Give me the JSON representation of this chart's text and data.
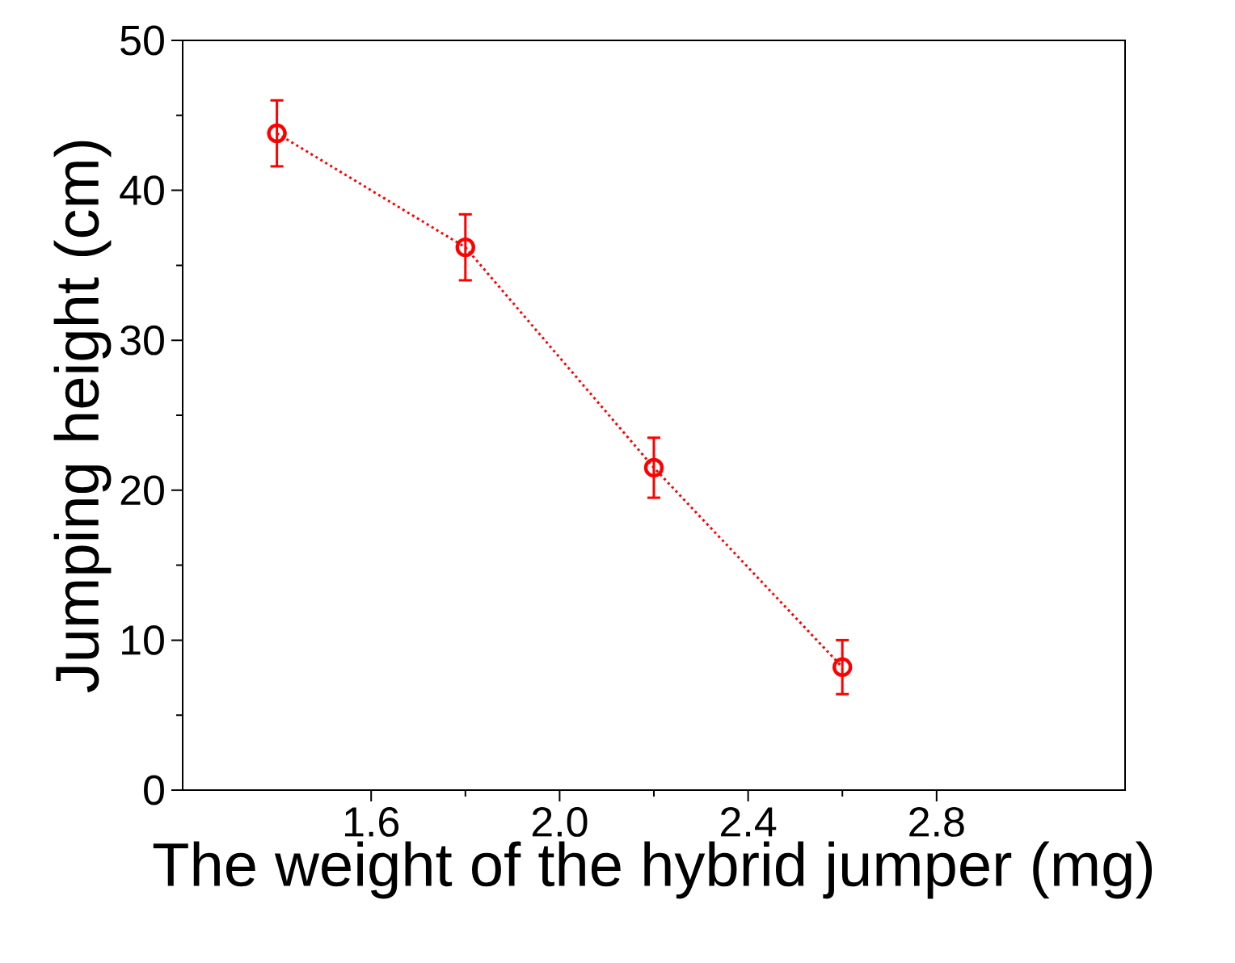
{
  "chart_data": {
    "type": "line",
    "xlabel": "The weight of the hybrid jumper (mg)",
    "ylabel": "Jumping height (cm)",
    "x": [
      1.4,
      1.8,
      2.2,
      2.6
    ],
    "series": [
      {
        "color": "#ff0000",
        "values": [
          43.8,
          36.2,
          21.5,
          8.2
        ],
        "errors": [
          2.2,
          2.2,
          2.0,
          1.8
        ]
      }
    ],
    "xlim": [
      1.2,
      3.2
    ],
    "ylim": [
      0,
      50
    ],
    "xticks": [
      1.6,
      {
        "value": 2.0,
        "label": "2.0"
      },
      2.4,
      2.8
    ],
    "yticks": [
      0,
      10,
      20,
      30,
      40,
      50
    ],
    "marker": "circle",
    "line_style": "dotted"
  }
}
